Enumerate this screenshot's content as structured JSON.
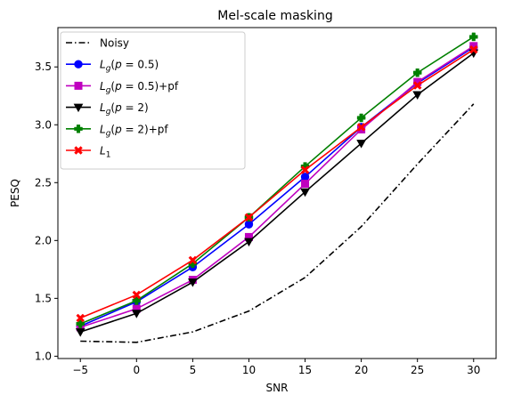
{
  "chart_data": {
    "type": "line",
    "title": "Mel-scale masking",
    "xlabel": "SNR",
    "ylabel": "PESQ",
    "x": [
      -5,
      0,
      5,
      10,
      15,
      20,
      25,
      30
    ],
    "xlim": [
      -7,
      32
    ],
    "ylim": [
      0.98,
      3.84
    ],
    "xticks": [
      -5,
      0,
      5,
      10,
      15,
      20,
      25,
      30
    ],
    "yticks": [
      1.0,
      1.5,
      2.0,
      2.5,
      3.0,
      3.5
    ],
    "ytick_labels": [
      "1.0",
      "1.5",
      "2.0",
      "2.5",
      "3.0",
      "3.5"
    ],
    "legend_position": "top-left",
    "grid": false,
    "series": [
      {
        "name": "Noisy",
        "color": "#000000",
        "linestyle": "dashdot",
        "marker": "none",
        "values": [
          1.13,
          1.12,
          1.21,
          1.39,
          1.68,
          2.12,
          2.66,
          3.18
        ]
      },
      {
        "name": "Lg(p=0.5)",
        "color": "#0000ff",
        "linestyle": "solid",
        "marker": "circle",
        "values": [
          1.26,
          1.47,
          1.77,
          2.14,
          2.55,
          2.98,
          3.36,
          3.67
        ]
      },
      {
        "name": "Lg(p=0.5)+pf",
        "color": "#bf00bf",
        "linestyle": "solid",
        "marker": "square",
        "values": [
          1.25,
          1.41,
          1.66,
          2.03,
          2.49,
          2.96,
          3.37,
          3.68
        ]
      },
      {
        "name": "Lg(p=2)",
        "color": "#000000",
        "linestyle": "solid",
        "marker": "triangle-down",
        "values": [
          1.21,
          1.37,
          1.64,
          1.99,
          2.42,
          2.84,
          3.26,
          3.62
        ]
      },
      {
        "name": "Lg(p=2)+pf",
        "color": "#008000",
        "linestyle": "solid",
        "marker": "plus",
        "values": [
          1.28,
          1.48,
          1.8,
          2.2,
          2.64,
          3.06,
          3.45,
          3.76
        ]
      },
      {
        "name": "L1",
        "color": "#ff0000",
        "linestyle": "solid",
        "marker": "x",
        "values": [
          1.33,
          1.53,
          1.83,
          2.2,
          2.61,
          2.98,
          3.34,
          3.65
        ]
      }
    ]
  }
}
